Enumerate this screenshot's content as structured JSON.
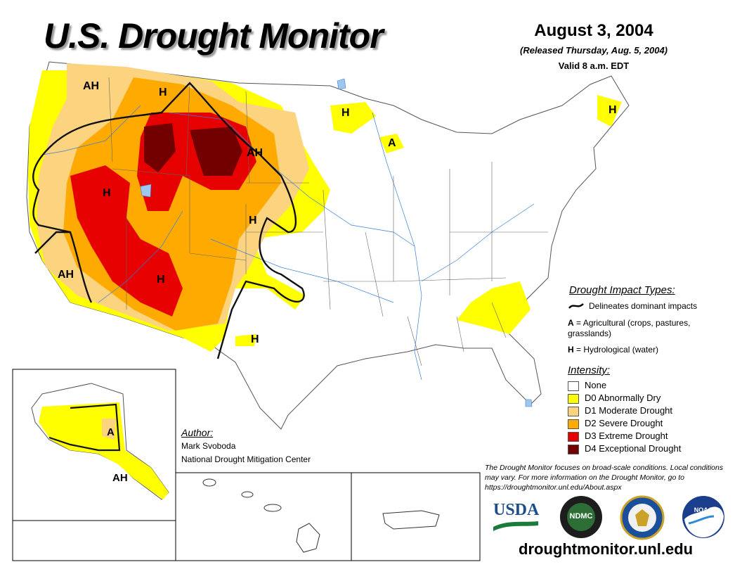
{
  "header": {
    "title": "U.S. Drought Monitor",
    "date": "August 3, 2004",
    "released": "(Released Thursday, Aug. 5, 2004)",
    "valid": "Valid 8 a.m. EDT"
  },
  "map": {
    "region_labels": {
      "ah_nw": "AH",
      "h_mt": "H",
      "h_nv": "H",
      "ah_ne": "AH",
      "h_co": "H",
      "ah_ca": "AH",
      "h_az": "H",
      "h_tx": "H",
      "h_mn": "H",
      "a_wi": "A",
      "h_me": "H",
      "a_ak": "A",
      "ah_ak": "AH"
    }
  },
  "impact_legend": {
    "heading": "Drought Impact Types:",
    "line_label": "Delineates dominant impacts",
    "a_key": "A",
    "a_desc": "= Agricultural (crops, pastures, grasslands)",
    "h_key": "H",
    "h_desc": "= Hydrological (water)"
  },
  "intensity_legend": {
    "heading": "Intensity:",
    "items": [
      {
        "label": "None",
        "color": "#ffffff"
      },
      {
        "label": "D0 Abnormally Dry",
        "color": "#ffff00"
      },
      {
        "label": "D1 Moderate Drought",
        "color": "#fcd37f"
      },
      {
        "label": "D2 Severe Drought",
        "color": "#ffaa00"
      },
      {
        "label": "D3 Extreme Drought",
        "color": "#e60000"
      },
      {
        "label": "D4 Exceptional Drought",
        "color": "#730000"
      }
    ]
  },
  "author": {
    "heading": "Author:",
    "name": "Mark Svoboda",
    "org": "National Drought Mitigation Center"
  },
  "disclaimer": "The Drought Monitor focuses on broad-scale conditions. Local conditions may vary. For more information on the Drought Monitor, go to https://droughtmonitor.unl.edu/About.aspx",
  "logos": {
    "usda": "USDA",
    "ndmc": "NDMC",
    "noaa": "NOAA"
  },
  "website": "droughtmonitor.unl.edu",
  "colors": {
    "d0": "#ffff00",
    "d1": "#fcd37f",
    "d2": "#ffaa00",
    "d3": "#e60000",
    "d4": "#730000",
    "rivers": "#3a7fd5"
  }
}
